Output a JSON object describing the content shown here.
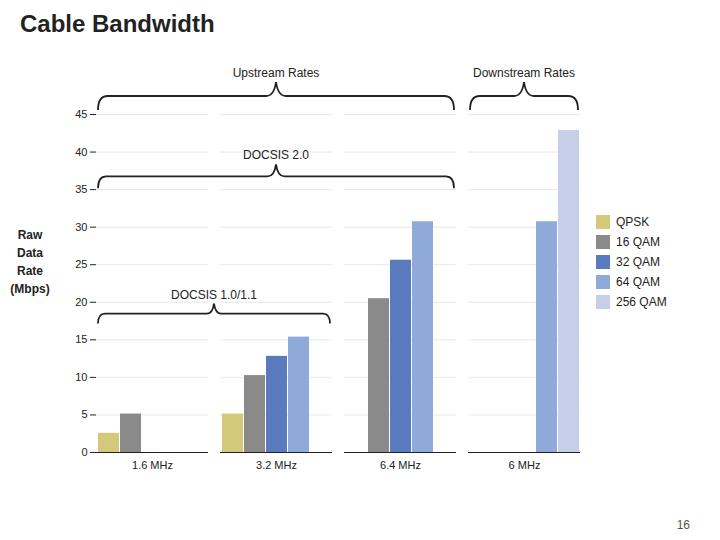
{
  "chart_data": {
    "type": "bar",
    "title": "Cable Bandwidth",
    "ylabel": "Raw\nData\nRate\n(Mbps)",
    "categories": [
      "1.6 MHz",
      "3.2 MHz",
      "6.4 MHz",
      "6 MHz"
    ],
    "series": [
      {
        "name": "QPSK",
        "color": "#d4c87a",
        "values": [
          2.56,
          5.12,
          0,
          0
        ]
      },
      {
        "name": "16 QAM",
        "color": "#8a8a8a",
        "values": [
          5.12,
          10.24,
          20.48,
          0
        ]
      },
      {
        "name": "32 QAM",
        "color": "#5a7abf",
        "values": [
          0,
          12.8,
          25.6,
          0
        ]
      },
      {
        "name": "64 QAM",
        "color": "#8faad8",
        "values": [
          0,
          15.36,
          30.72,
          30.72
        ]
      },
      {
        "name": "256 QAM",
        "color": "#c5cfe8",
        "values": [
          0,
          0,
          0,
          42.88
        ]
      }
    ],
    "ylim": [
      0,
      45
    ],
    "yticks": [
      0,
      5,
      10,
      15,
      20,
      25,
      30,
      35,
      40,
      45
    ],
    "grid": true,
    "legend": "right",
    "annotations": [
      "Upstream Rates",
      "Downstream Rates",
      "DOCSIS 2.0",
      "DOCSIS 1.0/1.1",
      "16"
    ]
  }
}
